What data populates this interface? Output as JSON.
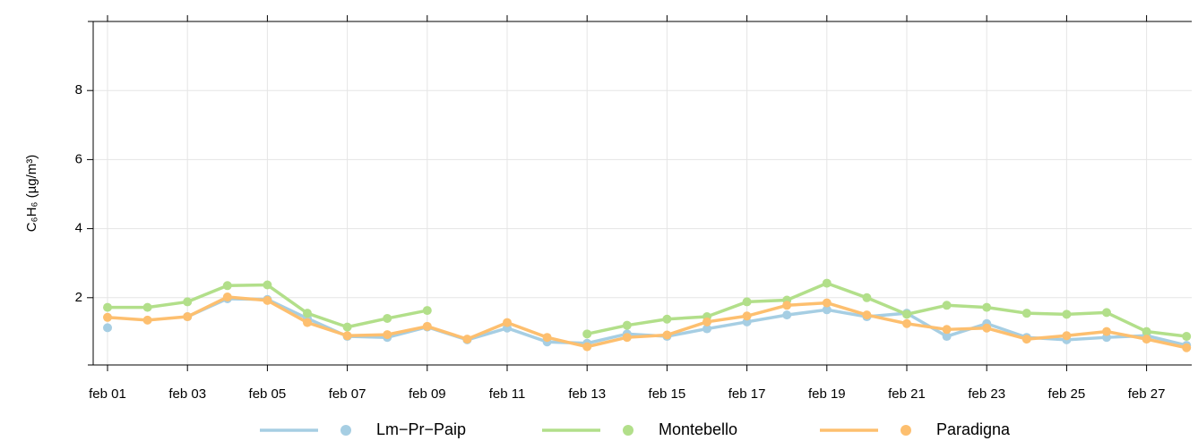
{
  "chart_data": {
    "type": "line",
    "y_label": "C₆H₆ (µg/m³)",
    "categories": [
      "feb 01",
      null,
      "feb 03",
      null,
      "feb 05",
      null,
      "feb 07",
      null,
      "feb 09",
      null,
      "feb 11",
      null,
      "feb 13",
      null,
      "feb 15",
      null,
      "feb 17",
      null,
      "feb 19",
      null,
      "feb 21",
      null,
      "feb 23",
      null,
      "feb 25",
      null,
      "feb 27",
      null
    ],
    "series": [
      {
        "name": "Lm−Pr−Paip",
        "color": "#a6cee3",
        "values": [
          1.13,
          null,
          1.45,
          1.97,
          1.95,
          1.4,
          0.88,
          0.85,
          1.15,
          0.78,
          1.12,
          0.72,
          0.68,
          0.95,
          0.88,
          1.1,
          1.3,
          1.5,
          1.65,
          1.45,
          1.55,
          0.88,
          1.25,
          0.85,
          0.78,
          0.85,
          0.9,
          0.62
        ]
      },
      {
        "name": "Montebello",
        "color": "#b2df8a",
        "values": [
          1.72,
          1.72,
          1.88,
          2.35,
          2.37,
          1.55,
          1.15,
          1.4,
          1.63,
          null,
          null,
          null,
          0.95,
          1.2,
          1.38,
          1.45,
          1.88,
          1.93,
          2.42,
          2.0,
          1.52,
          1.78,
          1.72,
          1.55,
          1.52,
          1.57,
          1.02,
          0.88
        ]
      },
      {
        "name": "Paradigna",
        "color": "#fdbf6f",
        "values": [
          1.43,
          1.35,
          1.45,
          2.02,
          1.92,
          1.28,
          0.9,
          0.93,
          1.17,
          0.8,
          1.28,
          0.85,
          0.58,
          0.85,
          0.92,
          1.3,
          1.47,
          1.78,
          1.85,
          1.5,
          1.25,
          1.08,
          1.12,
          0.8,
          0.9,
          1.02,
          0.8,
          0.55
        ]
      }
    ],
    "ylim": [
      0,
      10
    ],
    "yticks": [
      2,
      4,
      6,
      8
    ],
    "grid": true,
    "legend": "bottom"
  }
}
